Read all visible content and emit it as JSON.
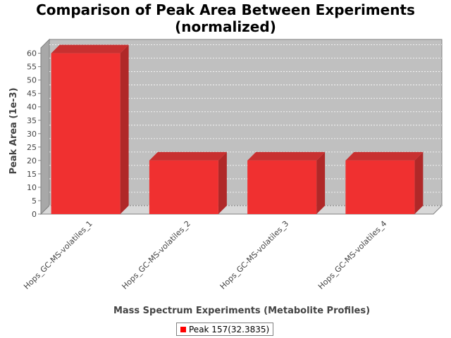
{
  "chart_data": {
    "type": "bar",
    "title": "Comparison of Peak Area Between Experiments",
    "subtitle": "(normalized)",
    "xlabel": "Mass Spectrum Experiments (Metabolite Profiles)",
    "ylabel": "Peak Area (1e-3)",
    "categories": [
      "Hops_GC-MS-volatiles_1",
      "Hops_GC-MS-volatiles_2",
      "Hops_GC-MS-volatiles_3",
      "Hops_GC-MS-volatiles_4"
    ],
    "series": [
      {
        "name": "Peak 157(32.3835)",
        "values": [
          60,
          20,
          20,
          20
        ],
        "color": "#ff0000"
      }
    ],
    "ylim": [
      0,
      62
    ],
    "yticks": [
      0,
      5,
      10,
      15,
      20,
      25,
      30,
      35,
      40,
      45,
      50,
      55,
      60
    ],
    "grid": true,
    "legend_position": "bottom",
    "plot_background": "#c0c0c0",
    "bar_style": "3d"
  }
}
